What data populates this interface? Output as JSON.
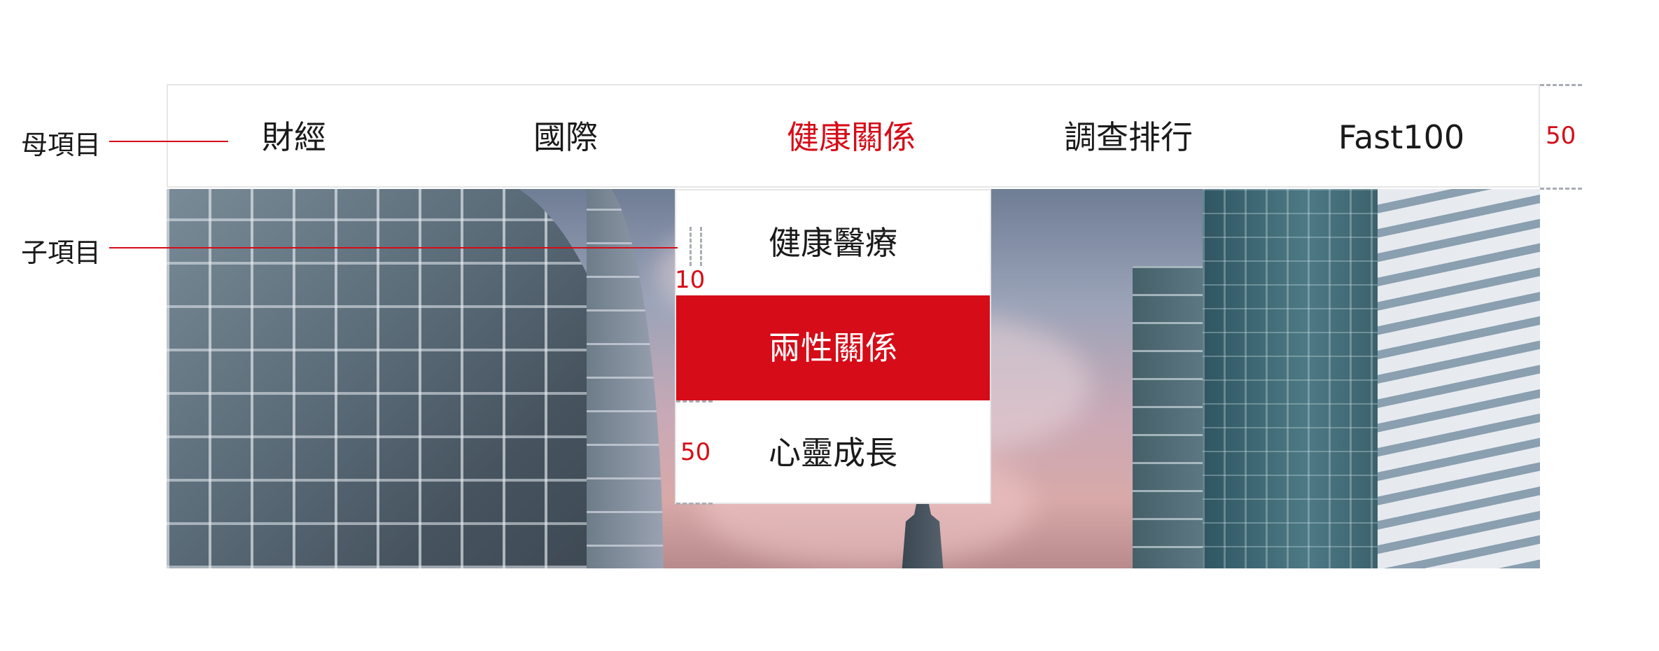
{
  "nav": {
    "items": [
      {
        "label": "財經"
      },
      {
        "label": "國際"
      },
      {
        "label": "健康關係"
      },
      {
        "label": "調查排行"
      },
      {
        "label": "Fast100"
      }
    ],
    "active_index": 2
  },
  "dropdown": {
    "items": [
      {
        "label": "健康醫療"
      },
      {
        "label": "兩性關係"
      },
      {
        "label": "心靈成長"
      }
    ],
    "selected_index": 1
  },
  "annotations": {
    "parent_label": "母項目",
    "child_label": "子項目",
    "nav_height": "50",
    "padding": "10",
    "item_height": "50"
  },
  "colors": {
    "accent": "#d60c18",
    "border": "#e6e6e6",
    "text": "#1a1a1a"
  }
}
